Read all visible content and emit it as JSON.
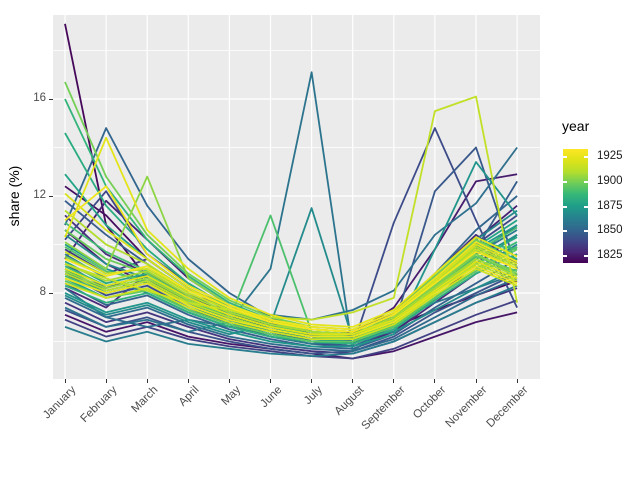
{
  "figure": {
    "background": "#FFFFFF",
    "panel_background": "#EBEBEB",
    "gridline_color": "#FFFFFF",
    "axis_text_color": "#4D4D4D",
    "axis_title_color": "#000000",
    "tick_mark_color": "#333333"
  },
  "axes": {
    "y_title": "share (%)",
    "x_title": "",
    "y_major_ticks": [
      16,
      12,
      8
    ],
    "y_minor_ticks": [
      18,
      14,
      10,
      6
    ]
  },
  "legend": {
    "title": "year",
    "tick_labels": [
      1925,
      1900,
      1875,
      1850,
      1825
    ],
    "year_domain": [
      1818,
      1933.5
    ],
    "viridis_stops": [
      "#440154",
      "#482878",
      "#3E4A89",
      "#31688E",
      "#26828E",
      "#1F9E89",
      "#35B779",
      "#6DCD59",
      "#B4DE2C",
      "#DDE318",
      "#FDE725"
    ]
  },
  "chart_data": {
    "type": "line",
    "title": "",
    "xlabel": "",
    "ylabel": "share (%)",
    "x_categories": [
      "January",
      "February",
      "March",
      "April",
      "May",
      "June",
      "July",
      "August",
      "September",
      "October",
      "November",
      "December"
    ],
    "y_axis_ticks": [
      8,
      12,
      16
    ],
    "y_range_shown": [
      4.5,
      19.5
    ],
    "grid": "major-and-minor",
    "legend_position": "right",
    "color_by": "year",
    "palette": "viridis",
    "series": [
      {
        "year": 1820,
        "values": [
          19.1,
          10.8,
          8.6,
          7.6,
          7.0,
          6.6,
          6.3,
          6.1,
          6.6,
          7.3,
          7.9,
          8.5
        ]
      },
      {
        "year": 1822,
        "values": [
          12.4,
          11.2,
          9.4,
          8.2,
          7.4,
          6.8,
          6.3,
          6.0,
          6.4,
          7.8,
          9.2,
          10.4
        ]
      },
      {
        "year": 1824,
        "values": [
          7.1,
          6.4,
          6.8,
          6.2,
          5.9,
          5.7,
          5.5,
          5.3,
          5.6,
          6.2,
          6.8,
          7.2
        ]
      },
      {
        "year": 1826,
        "values": [
          10.6,
          9.2,
          8.4,
          7.6,
          6.9,
          6.4,
          6.1,
          6.3,
          7.4,
          9.8,
          12.6,
          12.9
        ]
      },
      {
        "year": 1828,
        "values": [
          9.4,
          11.8,
          10.2,
          8.6,
          7.5,
          6.8,
          6.2,
          6.0,
          6.8,
          8.4,
          10.2,
          11.6
        ]
      },
      {
        "year": 1830,
        "values": [
          8.2,
          7.4,
          8.8,
          7.8,
          7.0,
          6.4,
          6.0,
          5.8,
          6.4,
          7.6,
          8.8,
          9.6
        ]
      },
      {
        "year": 1832,
        "values": [
          11.2,
          9.6,
          8.8,
          7.9,
          7.1,
          6.6,
          6.2,
          6.4,
          7.2,
          8.8,
          10.4,
          9.2
        ]
      },
      {
        "year": 1834,
        "values": [
          7.6,
          6.8,
          7.2,
          6.6,
          6.1,
          5.8,
          5.6,
          5.5,
          6.0,
          6.8,
          7.6,
          8.2
        ]
      },
      {
        "year": 1836,
        "values": [
          9.8,
          8.8,
          9.4,
          8.2,
          7.2,
          6.6,
          6.2,
          6.0,
          6.6,
          8.0,
          9.6,
          10.8
        ]
      },
      {
        "year": 1838,
        "values": [
          6.9,
          6.2,
          6.6,
          6.1,
          5.8,
          5.6,
          5.4,
          5.3,
          5.7,
          6.4,
          7.1,
          7.7
        ]
      },
      {
        "year": 1840,
        "values": [
          10.2,
          12.2,
          9.6,
          8.4,
          7.4,
          6.7,
          6.2,
          6.1,
          7.0,
          8.6,
          10.0,
          11.2
        ]
      },
      {
        "year": 1842,
        "values": [
          8.8,
          7.9,
          8.3,
          7.4,
          6.7,
          6.2,
          5.9,
          5.8,
          10.9,
          14.8,
          11.0,
          7.4
        ]
      },
      {
        "year": 1844,
        "values": [
          7.3,
          6.6,
          7.0,
          6.4,
          6.0,
          5.7,
          5.5,
          5.6,
          6.2,
          7.2,
          8.0,
          8.8
        ]
      },
      {
        "year": 1846,
        "values": [
          9.2,
          8.2,
          8.8,
          7.8,
          7.0,
          6.4,
          6.0,
          5.9,
          6.6,
          12.2,
          14.0,
          9.0
        ]
      },
      {
        "year": 1848,
        "values": [
          11.8,
          10.4,
          9.2,
          8.0,
          7.1,
          6.5,
          6.0,
          5.8,
          6.5,
          8.0,
          9.8,
          12.6
        ]
      },
      {
        "year": 1850,
        "values": [
          8.4,
          7.5,
          7.9,
          7.1,
          6.5,
          6.1,
          5.8,
          5.7,
          6.3,
          7.4,
          8.4,
          9.4
        ]
      },
      {
        "year": 1852,
        "values": [
          10.8,
          14.8,
          11.6,
          9.4,
          8.0,
          7.0,
          6.4,
          6.2,
          7.0,
          8.8,
          10.6,
          12.0
        ]
      },
      {
        "year": 1854,
        "values": [
          7.8,
          7.0,
          7.4,
          6.7,
          6.2,
          5.9,
          5.7,
          5.6,
          6.1,
          7.0,
          7.9,
          8.6
        ]
      },
      {
        "year": 1856,
        "values": [
          8.2,
          7.0,
          6.6,
          6.9,
          6.6,
          7.1,
          6.9,
          7.3,
          8.1,
          10.4,
          11.7,
          14.0
        ]
      },
      {
        "year": 1858,
        "values": [
          7.4,
          6.6,
          6.9,
          6.4,
          6.8,
          9.0,
          17.1,
          5.6,
          6.8,
          7.6,
          8.2,
          8.8
        ]
      },
      {
        "year": 1860,
        "values": [
          9.6,
          8.6,
          8.0,
          7.2,
          6.6,
          6.2,
          5.9,
          6.0,
          6.8,
          8.2,
          9.6,
          10.6
        ]
      },
      {
        "year": 1862,
        "values": [
          6.6,
          6.0,
          6.4,
          5.9,
          5.7,
          5.5,
          5.4,
          5.5,
          6.0,
          6.8,
          7.6,
          8.3
        ]
      },
      {
        "year": 1864,
        "values": [
          8.9,
          8.0,
          8.4,
          7.5,
          6.8,
          6.3,
          6.0,
          5.9,
          6.5,
          7.8,
          9.0,
          10.0
        ]
      },
      {
        "year": 1866,
        "values": [
          10.4,
          9.2,
          8.6,
          7.7,
          7.0,
          6.5,
          6.1,
          6.2,
          7.1,
          8.6,
          10.2,
          11.4
        ]
      },
      {
        "year": 1868,
        "values": [
          7.9,
          7.1,
          7.5,
          6.8,
          6.3,
          6.7,
          11.5,
          6.1,
          6.4,
          7.3,
          8.2,
          9.0
        ]
      },
      {
        "year": 1870,
        "values": [
          9.0,
          8.1,
          8.5,
          7.6,
          6.9,
          6.4,
          6.1,
          6.0,
          6.7,
          8.0,
          9.4,
          10.4
        ]
      },
      {
        "year": 1872,
        "values": [
          8.0,
          7.2,
          7.6,
          6.9,
          6.4,
          6.0,
          5.8,
          5.8,
          6.3,
          9.8,
          13.4,
          11.2
        ]
      },
      {
        "year": 1874,
        "values": [
          10.0,
          9.0,
          8.4,
          7.5,
          6.9,
          6.4,
          6.1,
          6.2,
          6.9,
          8.3,
          9.8,
          10.8
        ]
      },
      {
        "year": 1876,
        "values": [
          8.6,
          7.8,
          8.2,
          7.3,
          6.7,
          6.3,
          6.0,
          6.0,
          6.6,
          7.8,
          9.0,
          9.9
        ]
      },
      {
        "year": 1878,
        "values": [
          12.9,
          10.8,
          9.4,
          8.2,
          7.3,
          6.7,
          6.3,
          6.2,
          6.9,
          8.4,
          9.9,
          11.0
        ]
      },
      {
        "year": 1880,
        "values": [
          9.3,
          8.4,
          8.8,
          7.8,
          7.1,
          6.6,
          6.2,
          6.1,
          6.8,
          8.1,
          9.4,
          10.3
        ]
      },
      {
        "year": 1882,
        "values": [
          14.6,
          11.6,
          9.8,
          8.4,
          7.4,
          6.8,
          6.4,
          6.3,
          7.0,
          8.5,
          10.0,
          9.4
        ]
      },
      {
        "year": 1884,
        "values": [
          8.3,
          7.6,
          8.0,
          7.2,
          6.6,
          6.2,
          6.0,
          5.9,
          6.5,
          7.7,
          8.8,
          9.6
        ]
      },
      {
        "year": 1886,
        "values": [
          16.0,
          12.4,
          10.2,
          8.7,
          7.6,
          6.9,
          6.5,
          6.4,
          7.1,
          8.6,
          10.1,
          9.8
        ]
      },
      {
        "year": 1888,
        "values": [
          9.1,
          8.3,
          8.7,
          7.7,
          7.0,
          6.5,
          6.2,
          6.1,
          6.7,
          8.0,
          9.2,
          10.1
        ]
      },
      {
        "year": 1890,
        "values": [
          10.9,
          9.7,
          8.9,
          7.9,
          7.2,
          6.7,
          6.3,
          6.2,
          6.9,
          8.3,
          9.7,
          10.7
        ]
      },
      {
        "year": 1892,
        "values": [
          8.7,
          8.0,
          8.4,
          7.5,
          6.9,
          11.2,
          6.4,
          6.1,
          6.6,
          7.8,
          9.0,
          9.9
        ]
      },
      {
        "year": 1894,
        "values": [
          9.9,
          8.9,
          8.5,
          7.6,
          7.0,
          6.5,
          6.2,
          6.1,
          6.8,
          8.1,
          9.5,
          8.9
        ]
      },
      {
        "year": 1896,
        "values": [
          8.5,
          7.8,
          8.1,
          7.3,
          6.7,
          6.3,
          6.0,
          6.0,
          6.6,
          7.8,
          8.9,
          9.8
        ]
      },
      {
        "year": 1898,
        "values": [
          10.6,
          9.4,
          8.8,
          7.8,
          7.1,
          6.6,
          6.3,
          6.2,
          6.9,
          8.2,
          9.6,
          8.7
        ]
      },
      {
        "year": 1900,
        "values": [
          16.7,
          12.8,
          10.4,
          8.8,
          7.7,
          7.0,
          6.6,
          6.5,
          7.2,
          8.7,
          10.2,
          9.3
        ]
      },
      {
        "year": 1902,
        "values": [
          9.5,
          8.7,
          9.1,
          8.0,
          7.3,
          6.8,
          6.4,
          6.3,
          7.0,
          8.3,
          9.6,
          8.8
        ]
      },
      {
        "year": 1904,
        "values": [
          10.1,
          9.0,
          12.8,
          8.6,
          7.5,
          6.9,
          6.5,
          6.4,
          7.1,
          8.4,
          9.8,
          9.0
        ]
      },
      {
        "year": 1906,
        "values": [
          8.9,
          8.2,
          8.6,
          7.7,
          7.1,
          6.6,
          6.3,
          6.2,
          6.9,
          8.1,
          9.3,
          8.6
        ]
      },
      {
        "year": 1908,
        "values": [
          9.2,
          8.5,
          8.9,
          7.9,
          7.2,
          6.7,
          6.4,
          6.3,
          7.0,
          8.2,
          9.4,
          8.7
        ]
      },
      {
        "year": 1910,
        "values": [
          11.4,
          10.0,
          9.2,
          8.1,
          7.4,
          6.8,
          6.5,
          6.4,
          7.1,
          8.5,
          9.9,
          9.1
        ]
      },
      {
        "year": 1912,
        "values": [
          8.8,
          8.1,
          8.5,
          7.6,
          7.0,
          6.5,
          6.2,
          6.2,
          6.8,
          8.0,
          9.2,
          8.5
        ]
      },
      {
        "year": 1914,
        "values": [
          9.2,
          8.6,
          8.1,
          7.6,
          7.3,
          7.0,
          6.9,
          7.2,
          7.8,
          15.5,
          16.1,
          7.6
        ]
      },
      {
        "year": 1916,
        "values": [
          9.7,
          8.8,
          9.0,
          8.0,
          7.3,
          6.8,
          6.5,
          6.4,
          7.1,
          8.4,
          9.8,
          9.0
        ]
      },
      {
        "year": 1918,
        "values": [
          8.4,
          7.8,
          8.2,
          7.4,
          6.8,
          6.4,
          6.1,
          6.1,
          6.7,
          7.9,
          9.0,
          8.3
        ]
      },
      {
        "year": 1920,
        "values": [
          12.1,
          10.6,
          9.4,
          8.2,
          7.4,
          6.9,
          6.5,
          6.4,
          7.1,
          8.5,
          10.0,
          9.2
        ]
      },
      {
        "year": 1922,
        "values": [
          9.0,
          8.3,
          8.7,
          7.8,
          7.1,
          6.6,
          6.3,
          6.3,
          6.9,
          8.1,
          9.3,
          8.6
        ]
      },
      {
        "year": 1924,
        "values": [
          10.3,
          14.4,
          10.6,
          9.0,
          7.8,
          7.1,
          6.7,
          6.6,
          7.3,
          8.8,
          10.3,
          9.5
        ]
      },
      {
        "year": 1926,
        "values": [
          8.6,
          8.0,
          8.4,
          7.5,
          6.9,
          6.5,
          6.2,
          6.2,
          6.8,
          8.0,
          9.1,
          8.4
        ]
      },
      {
        "year": 1928,
        "values": [
          11.0,
          12.4,
          9.6,
          8.3,
          7.5,
          6.9,
          6.6,
          6.5,
          7.2,
          8.6,
          10.1,
          9.3
        ]
      },
      {
        "year": 1930,
        "values": [
          9.4,
          8.7,
          9.1,
          8.1,
          7.4,
          6.8,
          6.5,
          6.4,
          7.1,
          8.4,
          9.7,
          9.0
        ]
      }
    ]
  }
}
